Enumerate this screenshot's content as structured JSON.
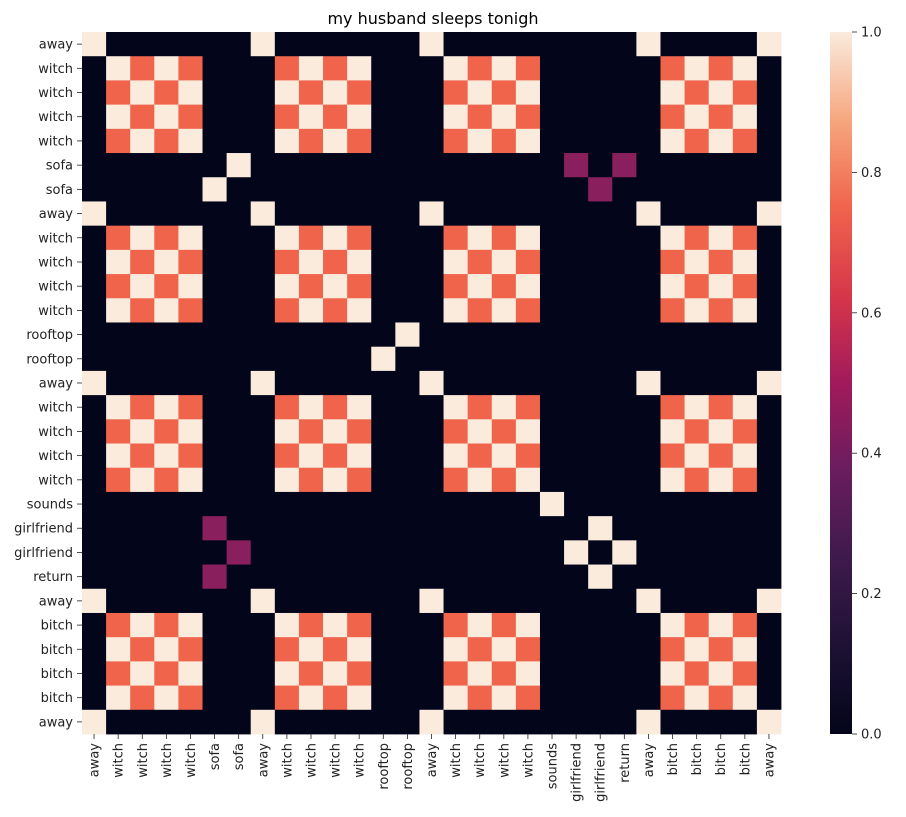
{
  "chart_data": {
    "type": "heatmap",
    "title": "my husband sleeps tonigh",
    "tokens": [
      "away",
      "witch",
      "witch",
      "witch",
      "witch",
      "sofa",
      "sofa",
      "away",
      "witch",
      "witch",
      "witch",
      "witch",
      "rooftop",
      "rooftop",
      "away",
      "witch",
      "witch",
      "witch",
      "witch",
      "sounds",
      "girlfriend",
      "girlfriend",
      "return",
      "away",
      "bitch",
      "bitch",
      "bitch",
      "bitch",
      "away"
    ],
    "colorbar": {
      "min": 0.0,
      "max": 1.0,
      "ticks": [
        "0.0",
        "0.2",
        "0.4",
        "0.6",
        "0.8",
        "1.0"
      ],
      "colormap": "rocket"
    },
    "rules": {
      "away_value": 1.0,
      "group_checker_match": 1.0,
      "group_checker_mismatch": 0.7,
      "sofa_girlfriend_return": 0.35
    },
    "cells_note": "",
    "colors": {
      "high": "#faebdd",
      "mid": "#f0644c",
      "low_mid": "#8a1f5e",
      "zero": "#03051a"
    }
  }
}
